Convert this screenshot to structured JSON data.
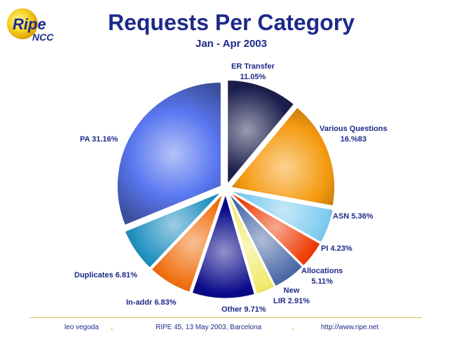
{
  "logo": {
    "main": "Ripe",
    "sub": "NCC"
  },
  "title": "Requests Per Category",
  "subtitle": "Jan - Apr 2003",
  "chart_data": {
    "type": "pie",
    "title": "Requests Per Category",
    "subtitle": "Jan - Apr 2003",
    "slices": [
      {
        "label": "ER Transfer",
        "value": 11.05,
        "value_text": "11.05%",
        "color": "#1b1f4d"
      },
      {
        "label": "Various Questions",
        "value": 16.83,
        "value_text": "16.%83",
        "color": "#f59a10"
      },
      {
        "label": "ASN",
        "value": 5.36,
        "value_text": "5.36%",
        "color": "#7ecbf0"
      },
      {
        "label": "PI",
        "value": 4.23,
        "value_text": "4.23%",
        "color": "#ee3c05"
      },
      {
        "label": "Allocations",
        "value": 5.11,
        "value_text": "5.11%",
        "color": "#4c6aa8"
      },
      {
        "label": "New LIR",
        "value": 2.91,
        "value_text": "2.91%",
        "color": "#f2e96a"
      },
      {
        "label": "Other",
        "value": 9.71,
        "value_text": "9.71%",
        "color": "#0a0a8a"
      },
      {
        "label": "In-addr",
        "value": 6.83,
        "value_text": "6.83%",
        "color": "#f07010"
      },
      {
        "label": "Duplicates",
        "value": 6.81,
        "value_text": "6.81%",
        "color": "#2090c0"
      },
      {
        "label": "PA",
        "value": 31.16,
        "value_text": "31.16%",
        "color": "#5a78f0"
      }
    ]
  },
  "labels": {
    "er_line1": "ER Transfer",
    "er_line2": "11.05%",
    "vq_line1": "Various Questions",
    "vq_line2": "16.%83",
    "asn": "ASN 5.36%",
    "pi": "PI 4.23%",
    "alloc_line1": "Allocations",
    "alloc_line2": "5.11%",
    "newlir_line1": "New",
    "newlir_line2": "LIR 2.91%",
    "other": "Other 9.71%",
    "inaddr": "In-addr 6.83%",
    "dup": "Duplicates 6.81%",
    "pa": "PA 31.16%"
  },
  "footer": {
    "author": "leo vegoda",
    "event": "RIPE 45, 13 May 2003, Barcelona",
    "url": "http://www.ripe.net",
    "separator": "."
  }
}
